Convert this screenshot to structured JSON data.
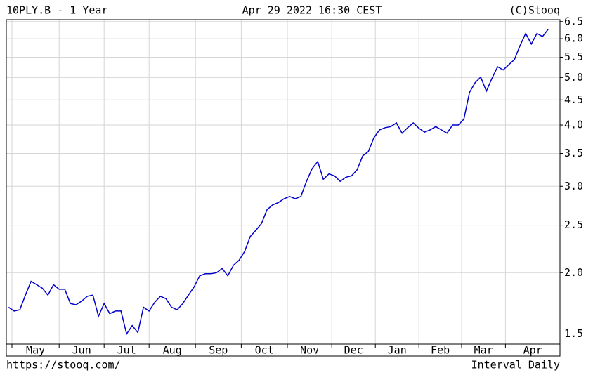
{
  "chart_data": {
    "type": "line",
    "title": "10PLY.B - 1 Year",
    "subtitle": "Apr 29 2022 16:30 CEST",
    "copyright": "(C)Stooq",
    "source": "https://stooq.com/",
    "interval": "Interval Daily",
    "log_scale": true,
    "grid": true,
    "xlim": [
      -0.4,
      98.1
    ],
    "xticks": [
      {
        "value": 0.6,
        "label": "May"
      },
      {
        "value": 9,
        "label": "Jun"
      },
      {
        "value": 17,
        "label": "Jul"
      },
      {
        "value": 25,
        "label": "Aug"
      },
      {
        "value": 33.25,
        "label": "Sep"
      },
      {
        "value": 41.4,
        "label": "Oct"
      },
      {
        "value": 49.6,
        "label": "Nov"
      },
      {
        "value": 57.5,
        "label": "Dec"
      },
      {
        "value": 65.25,
        "label": "Jan"
      },
      {
        "value": 73,
        "label": "Feb"
      },
      {
        "value": 80.6,
        "label": "Mar"
      },
      {
        "value": 88.4,
        "label": "Apr"
      }
    ],
    "ylim": [
      1.43,
      6.56
    ],
    "yticks": [
      1.5,
      {
        "value": 2,
        "label": "2.0"
      },
      2.5,
      {
        "value": 3,
        "label": "3.0"
      },
      3.5,
      {
        "value": 4,
        "label": "4.0"
      },
      4.5,
      {
        "value": 5,
        "label": "5.0"
      },
      5.5,
      {
        "value": 6,
        "label": "6.0"
      },
      6.5
    ],
    "x": [
      0,
      1,
      2,
      3,
      4,
      5,
      6,
      7,
      8,
      9,
      10,
      11,
      12,
      13,
      14,
      15,
      16,
      17,
      18,
      19,
      20,
      21,
      22,
      23,
      24,
      25,
      26,
      27,
      28,
      29,
      30,
      31,
      32,
      33,
      34,
      35,
      36,
      37,
      38,
      39,
      40,
      41,
      42,
      43,
      44,
      45,
      46,
      47,
      48,
      49,
      50,
      51,
      52,
      53,
      54,
      55,
      56,
      57,
      58,
      59,
      60,
      61,
      62,
      63,
      64,
      65,
      66,
      67,
      68,
      69,
      70,
      71,
      72,
      73,
      74,
      75,
      76,
      77,
      78,
      79,
      80,
      81,
      82,
      83,
      84,
      85,
      86,
      87,
      88,
      89,
      90,
      91,
      92,
      93,
      94,
      95,
      96
    ],
    "series": [
      {
        "color": "#0000cc",
        "values": [
          1.7,
          1.67,
          1.68,
          1.8,
          1.92,
          1.89,
          1.86,
          1.8,
          1.89,
          1.85,
          1.85,
          1.73,
          1.72,
          1.75,
          1.79,
          1.8,
          1.63,
          1.73,
          1.65,
          1.67,
          1.67,
          1.5,
          1.56,
          1.51,
          1.7,
          1.67,
          1.74,
          1.79,
          1.77,
          1.7,
          1.68,
          1.73,
          1.8,
          1.87,
          1.97,
          1.99,
          1.99,
          2.0,
          2.04,
          1.97,
          2.07,
          2.12,
          2.21,
          2.37,
          2.44,
          2.52,
          2.69,
          2.75,
          2.78,
          2.83,
          2.86,
          2.83,
          2.86,
          3.07,
          3.26,
          3.37,
          3.1,
          3.18,
          3.15,
          3.07,
          3.13,
          3.15,
          3.24,
          3.46,
          3.53,
          3.77,
          3.91,
          3.95,
          3.97,
          4.04,
          3.85,
          3.95,
          4.04,
          3.94,
          3.87,
          3.91,
          3.97,
          3.91,
          3.85,
          4.0,
          4.0,
          4.11,
          4.66,
          4.88,
          5.01,
          4.69,
          4.98,
          5.26,
          5.18,
          5.31,
          5.44,
          5.81,
          6.15,
          5.85,
          6.15,
          6.06,
          6.27
        ]
      }
    ]
  }
}
